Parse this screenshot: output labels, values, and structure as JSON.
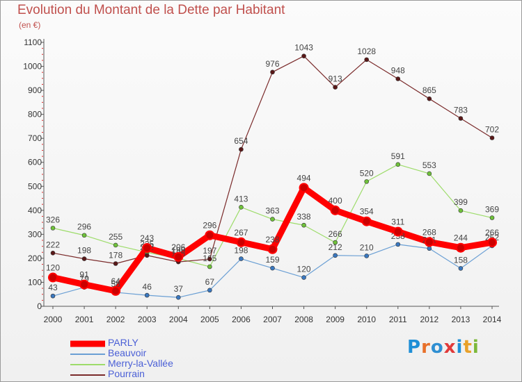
{
  "title": "Evolution du Montant de la Dette par Habitant",
  "subtitle": "(en €)",
  "logo": {
    "letters": [
      "P",
      "r",
      "o",
      "x",
      "i",
      "t",
      "i"
    ],
    "colors": [
      "#1f8fd6",
      "#e8702a",
      "#2f8fd2",
      "#e03a3a",
      "#1f8fd6",
      "#e8a12a",
      "#7cb83a"
    ]
  },
  "chart_data": {
    "type": "line",
    "title": "Evolution du Montant de la Dette par Habitant",
    "ylabel": "(en €)",
    "x": [
      2000,
      2001,
      2002,
      2003,
      2004,
      2005,
      2006,
      2007,
      2008,
      2009,
      2010,
      2011,
      2012,
      2013,
      2014
    ],
    "ylim": [
      0,
      1100
    ],
    "yticks": [
      0,
      100,
      200,
      300,
      400,
      500,
      600,
      700,
      800,
      900,
      1000,
      1100
    ],
    "grid": false,
    "legend_position": "bottom-left",
    "series": [
      {
        "name": "PARLY",
        "color": "#ff0000",
        "marker": "#cc0000",
        "width": 9,
        "values": [
          120,
          91,
          64,
          243,
          206,
          296,
          267,
          238,
          494,
          400,
          354,
          311,
          268,
          244,
          266
        ]
      },
      {
        "name": "Beauvoir",
        "color": "#6a9fd4",
        "marker": "#3a78c0",
        "width": 1.2,
        "values": [
          43,
          79,
          58,
          46,
          37,
          67,
          198,
          159,
          120,
          212,
          210,
          258,
          241,
          158,
          252
        ]
      },
      {
        "name": "Merry-la-Vallée",
        "color": "#9ddc6a",
        "marker": "#6fc23a",
        "width": 1.2,
        "values": [
          326,
          296,
          255,
          225,
          199,
          165,
          413,
          363,
          338,
          266,
          520,
          591,
          553,
          399,
          369
        ]
      },
      {
        "name": "Pourrain",
        "color": "#7a2a2a",
        "marker": "#5a1818",
        "width": 1.2,
        "values": [
          222,
          198,
          178,
          212,
          185,
          197,
          654,
          976,
          1043,
          913,
          1028,
          948,
          865,
          783,
          702
        ]
      }
    ]
  }
}
